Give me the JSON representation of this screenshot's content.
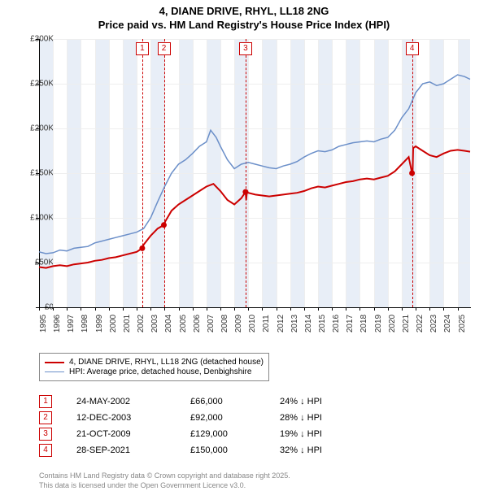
{
  "title_line1": "4, DIANE DRIVE, RHYL, LL18 2NG",
  "title_line2": "Price paid vs. HM Land Registry's House Price Index (HPI)",
  "chart": {
    "type": "line",
    "x_start_year": 1995,
    "x_end_year": 2025.9,
    "y_min": 0,
    "y_max": 300000,
    "y_tick_step": 50000,
    "y_tick_labels": [
      "£0",
      "£50K",
      "£100K",
      "£150K",
      "£200K",
      "£250K",
      "£300K"
    ],
    "x_ticks_years": [
      1995,
      1996,
      1997,
      1998,
      1999,
      2000,
      2001,
      2002,
      2003,
      2004,
      2005,
      2006,
      2007,
      2008,
      2009,
      2010,
      2011,
      2012,
      2013,
      2014,
      2015,
      2016,
      2017,
      2018,
      2019,
      2020,
      2021,
      2022,
      2023,
      2024,
      2025
    ],
    "grid_color": "#eeeeee",
    "background_color": "#ffffff",
    "band_color": "#e8eef7",
    "bands": [
      [
        1995,
        1996
      ],
      [
        1997,
        1998
      ],
      [
        1999,
        2000
      ],
      [
        2001,
        2002
      ],
      [
        2003,
        2004
      ],
      [
        2005,
        2006
      ],
      [
        2007,
        2008
      ],
      [
        2009,
        2010
      ],
      [
        2011,
        2012
      ],
      [
        2013,
        2014
      ],
      [
        2015,
        2016
      ],
      [
        2017,
        2018
      ],
      [
        2019,
        2020
      ],
      [
        2021,
        2022
      ],
      [
        2023,
        2024
      ],
      [
        2025,
        2025.9
      ]
    ],
    "series": [
      {
        "name": "hpi",
        "color": "#6b8fc9",
        "width": 1.5,
        "points": [
          [
            1995,
            62000
          ],
          [
            1995.5,
            60000
          ],
          [
            1996,
            61000
          ],
          [
            1996.5,
            64000
          ],
          [
            1997,
            63000
          ],
          [
            1997.5,
            66000
          ],
          [
            1998,
            67000
          ],
          [
            1998.5,
            68000
          ],
          [
            1999,
            72000
          ],
          [
            1999.5,
            74000
          ],
          [
            2000,
            76000
          ],
          [
            2000.5,
            78000
          ],
          [
            2001,
            80000
          ],
          [
            2001.5,
            82000
          ],
          [
            2002,
            84000
          ],
          [
            2002.5,
            88000
          ],
          [
            2003,
            100000
          ],
          [
            2003.5,
            118000
          ],
          [
            2004,
            135000
          ],
          [
            2004.5,
            150000
          ],
          [
            2005,
            160000
          ],
          [
            2005.5,
            165000
          ],
          [
            2006,
            172000
          ],
          [
            2006.5,
            180000
          ],
          [
            2007,
            185000
          ],
          [
            2007.3,
            198000
          ],
          [
            2007.7,
            190000
          ],
          [
            2008,
            180000
          ],
          [
            2008.5,
            165000
          ],
          [
            2009,
            155000
          ],
          [
            2009.5,
            160000
          ],
          [
            2010,
            162000
          ],
          [
            2010.5,
            160000
          ],
          [
            2011,
            158000
          ],
          [
            2011.5,
            156000
          ],
          [
            2012,
            155000
          ],
          [
            2012.5,
            158000
          ],
          [
            2013,
            160000
          ],
          [
            2013.5,
            163000
          ],
          [
            2014,
            168000
          ],
          [
            2014.5,
            172000
          ],
          [
            2015,
            175000
          ],
          [
            2015.5,
            174000
          ],
          [
            2016,
            176000
          ],
          [
            2016.5,
            180000
          ],
          [
            2017,
            182000
          ],
          [
            2017.5,
            184000
          ],
          [
            2018,
            185000
          ],
          [
            2018.5,
            186000
          ],
          [
            2019,
            185000
          ],
          [
            2019.5,
            188000
          ],
          [
            2020,
            190000
          ],
          [
            2020.5,
            198000
          ],
          [
            2021,
            212000
          ],
          [
            2021.5,
            222000
          ],
          [
            2022,
            240000
          ],
          [
            2022.5,
            250000
          ],
          [
            2023,
            252000
          ],
          [
            2023.5,
            248000
          ],
          [
            2024,
            250000
          ],
          [
            2024.5,
            255000
          ],
          [
            2025,
            260000
          ],
          [
            2025.5,
            258000
          ],
          [
            2025.9,
            255000
          ]
        ]
      },
      {
        "name": "property",
        "color": "#cc0000",
        "width": 2,
        "points": [
          [
            1995,
            45000
          ],
          [
            1995.5,
            44000
          ],
          [
            1996,
            46000
          ],
          [
            1996.5,
            47000
          ],
          [
            1997,
            46000
          ],
          [
            1997.5,
            48000
          ],
          [
            1998,
            49000
          ],
          [
            1998.5,
            50000
          ],
          [
            1999,
            52000
          ],
          [
            1999.5,
            53000
          ],
          [
            2000,
            55000
          ],
          [
            2000.5,
            56000
          ],
          [
            2001,
            58000
          ],
          [
            2001.5,
            60000
          ],
          [
            2002,
            62000
          ],
          [
            2002.4,
            66000
          ],
          [
            2002.5,
            70000
          ],
          [
            2003,
            80000
          ],
          [
            2003.5,
            88000
          ],
          [
            2003.95,
            92000
          ],
          [
            2004.05,
            96000
          ],
          [
            2004.5,
            108000
          ],
          [
            2005,
            115000
          ],
          [
            2005.5,
            120000
          ],
          [
            2006,
            125000
          ],
          [
            2006.5,
            130000
          ],
          [
            2007,
            135000
          ],
          [
            2007.5,
            138000
          ],
          [
            2008,
            130000
          ],
          [
            2008.5,
            120000
          ],
          [
            2009,
            115000
          ],
          [
            2009.5,
            122000
          ],
          [
            2009.8,
            129000
          ],
          [
            2009.85,
            120000
          ],
          [
            2009.9,
            129000
          ],
          [
            2010,
            128000
          ],
          [
            2010.5,
            126000
          ],
          [
            2011,
            125000
          ],
          [
            2011.5,
            124000
          ],
          [
            2012,
            125000
          ],
          [
            2012.5,
            126000
          ],
          [
            2013,
            127000
          ],
          [
            2013.5,
            128000
          ],
          [
            2014,
            130000
          ],
          [
            2014.5,
            133000
          ],
          [
            2015,
            135000
          ],
          [
            2015.5,
            134000
          ],
          [
            2016,
            136000
          ],
          [
            2016.5,
            138000
          ],
          [
            2017,
            140000
          ],
          [
            2017.5,
            141000
          ],
          [
            2018,
            143000
          ],
          [
            2018.5,
            144000
          ],
          [
            2019,
            143000
          ],
          [
            2019.5,
            145000
          ],
          [
            2020,
            147000
          ],
          [
            2020.5,
            152000
          ],
          [
            2021,
            160000
          ],
          [
            2021.5,
            168000
          ],
          [
            2021.74,
            150000
          ],
          [
            2021.78,
            150000
          ],
          [
            2021.82,
            178000
          ],
          [
            2022,
            180000
          ],
          [
            2022.5,
            175000
          ],
          [
            2023,
            170000
          ],
          [
            2023.5,
            168000
          ],
          [
            2024,
            172000
          ],
          [
            2024.5,
            175000
          ],
          [
            2025,
            176000
          ],
          [
            2025.5,
            175000
          ],
          [
            2025.9,
            174000
          ]
        ]
      }
    ],
    "markers": [
      {
        "id": "1",
        "year": 2002.4
      },
      {
        "id": "2",
        "year": 2003.95
      },
      {
        "id": "3",
        "year": 2009.8
      },
      {
        "id": "4",
        "year": 2021.74
      }
    ],
    "sale_dots": [
      {
        "year": 2002.4,
        "price": 66000
      },
      {
        "year": 2003.95,
        "price": 92000
      },
      {
        "year": 2009.8,
        "price": 129000
      },
      {
        "year": 2021.74,
        "price": 150000
      }
    ]
  },
  "legend": {
    "items": [
      {
        "color": "#cc0000",
        "label": "4, DIANE DRIVE, RHYL, LL18 2NG (detached house)"
      },
      {
        "color": "#6b8fc9",
        "label": "HPI: Average price, detached house, Denbighshire"
      }
    ]
  },
  "sales": [
    {
      "n": "1",
      "date": "24-MAY-2002",
      "price": "£66,000",
      "diff": "24% ↓ HPI"
    },
    {
      "n": "2",
      "date": "12-DEC-2003",
      "price": "£92,000",
      "diff": "28% ↓ HPI"
    },
    {
      "n": "3",
      "date": "21-OCT-2009",
      "price": "£129,000",
      "diff": "19% ↓ HPI"
    },
    {
      "n": "4",
      "date": "28-SEP-2021",
      "price": "£150,000",
      "diff": "32% ↓ HPI"
    }
  ],
  "footer_line1": "Contains HM Land Registry data © Crown copyright and database right 2025.",
  "footer_line2": "This data is licensed under the Open Government Licence v3.0."
}
